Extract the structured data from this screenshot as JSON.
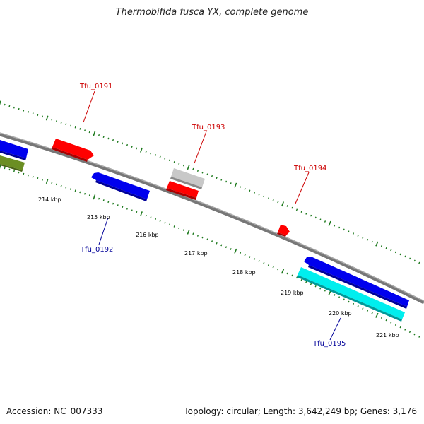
{
  "title": "Thermobifida fusca YX, complete genome",
  "footer": {
    "accession": "Accession: NC_007333",
    "summary": "Topology: circular; Length: 3,642,249 bp; Genes: 3,176"
  },
  "colors": {
    "backbone": "#808080",
    "ticks": "#1e7a1e",
    "forward_label": "#cc0000",
    "reverse_label": "#000099",
    "red": "#ff0000",
    "blue": "#0000ee",
    "cyan": "#00eeee",
    "olive": "#6b8e23",
    "gray": "#c8c8c8"
  },
  "scale_labels": [
    "214 kbp",
    "215 kbp",
    "216 kbp",
    "217 kbp",
    "218 kbp",
    "219 kbp",
    "220 kbp",
    "221 kbp"
  ],
  "gene_labels": [
    "Tfu_0191",
    "Tfu_0192",
    "Tfu_0193",
    "Tfu_0194",
    "Tfu_0195"
  ]
}
